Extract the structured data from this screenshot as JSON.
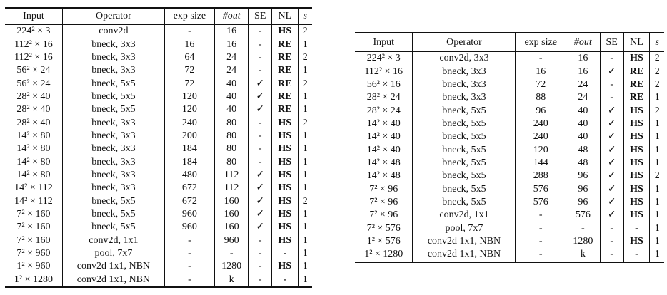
{
  "tables": [
    {
      "headers": [
        "Input",
        "Operator",
        "exp size",
        "#out",
        "SE",
        "NL",
        "s"
      ],
      "rows": [
        [
          "224² × 3",
          "conv2d",
          "-",
          "16",
          "-",
          "HS",
          "2"
        ],
        [
          "112² × 16",
          "bneck, 3x3",
          "16",
          "16",
          "-",
          "RE",
          "1"
        ],
        [
          "112² × 16",
          "bneck, 3x3",
          "64",
          "24",
          "-",
          "RE",
          "2"
        ],
        [
          "56² × 24",
          "bneck, 3x3",
          "72",
          "24",
          "-",
          "RE",
          "1"
        ],
        [
          "56² × 24",
          "bneck, 5x5",
          "72",
          "40",
          "✓",
          "RE",
          "2"
        ],
        [
          "28² × 40",
          "bneck, 5x5",
          "120",
          "40",
          "✓",
          "RE",
          "1"
        ],
        [
          "28² × 40",
          "bneck, 5x5",
          "120",
          "40",
          "✓",
          "RE",
          "1"
        ],
        [
          "28² × 40",
          "bneck, 3x3",
          "240",
          "80",
          "-",
          "HS",
          "2"
        ],
        [
          "14² × 80",
          "bneck, 3x3",
          "200",
          "80",
          "-",
          "HS",
          "1"
        ],
        [
          "14² × 80",
          "bneck, 3x3",
          "184",
          "80",
          "-",
          "HS",
          "1"
        ],
        [
          "14² × 80",
          "bneck, 3x3",
          "184",
          "80",
          "-",
          "HS",
          "1"
        ],
        [
          "14² × 80",
          "bneck, 3x3",
          "480",
          "112",
          "✓",
          "HS",
          "1"
        ],
        [
          "14² × 112",
          "bneck, 3x3",
          "672",
          "112",
          "✓",
          "HS",
          "1"
        ],
        [
          "14² × 112",
          "bneck, 5x5",
          "672",
          "160",
          "✓",
          "HS",
          "2"
        ],
        [
          "7² × 160",
          "bneck, 5x5",
          "960",
          "160",
          "✓",
          "HS",
          "1"
        ],
        [
          "7² × 160",
          "bneck, 5x5",
          "960",
          "160",
          "✓",
          "HS",
          "1"
        ],
        [
          "7² × 160",
          "conv2d, 1x1",
          "-",
          "960",
          "-",
          "HS",
          "1"
        ],
        [
          "7² × 960",
          "pool, 7x7",
          "-",
          "-",
          "-",
          "-",
          "1"
        ],
        [
          "1² × 960",
          "conv2d 1x1, NBN",
          "-",
          "1280",
          "-",
          "HS",
          "1"
        ],
        [
          "1² × 1280",
          "conv2d 1x1, NBN",
          "-",
          "k",
          "-",
          "-",
          "1"
        ]
      ]
    },
    {
      "headers": [
        "Input",
        "Operator",
        "exp size",
        "#out",
        "SE",
        "NL",
        "s"
      ],
      "rows": [
        [
          "224² × 3",
          "conv2d, 3x3",
          "-",
          "16",
          "-",
          "HS",
          "2"
        ],
        [
          "112² × 16",
          "bneck, 3x3",
          "16",
          "16",
          "✓",
          "RE",
          "2"
        ],
        [
          "56² × 16",
          "bneck, 3x3",
          "72",
          "24",
          "-",
          "RE",
          "2"
        ],
        [
          "28² × 24",
          "bneck, 3x3",
          "88",
          "24",
          "-",
          "RE",
          "1"
        ],
        [
          "28² × 24",
          "bneck, 5x5",
          "96",
          "40",
          "✓",
          "HS",
          "2"
        ],
        [
          "14² × 40",
          "bneck, 5x5",
          "240",
          "40",
          "✓",
          "HS",
          "1"
        ],
        [
          "14² × 40",
          "bneck, 5x5",
          "240",
          "40",
          "✓",
          "HS",
          "1"
        ],
        [
          "14² × 40",
          "bneck, 5x5",
          "120",
          "48",
          "✓",
          "HS",
          "1"
        ],
        [
          "14² × 48",
          "bneck, 5x5",
          "144",
          "48",
          "✓",
          "HS",
          "1"
        ],
        [
          "14² × 48",
          "bneck, 5x5",
          "288",
          "96",
          "✓",
          "HS",
          "2"
        ],
        [
          "7² × 96",
          "bneck, 5x5",
          "576",
          "96",
          "✓",
          "HS",
          "1"
        ],
        [
          "7² × 96",
          "bneck, 5x5",
          "576",
          "96",
          "✓",
          "HS",
          "1"
        ],
        [
          "7² × 96",
          "conv2d, 1x1",
          "-",
          "576",
          "✓",
          "HS",
          "1"
        ],
        [
          "7² × 576",
          "pool, 7x7",
          "-",
          "-",
          "-",
          "-",
          "1"
        ],
        [
          "1² × 576",
          "conv2d 1x1, NBN",
          "-",
          "1280",
          "-",
          "HS",
          "1"
        ],
        [
          "1² × 1280",
          "conv2d 1x1, NBN",
          "-",
          "k",
          "-",
          "-",
          "1"
        ]
      ]
    }
  ]
}
